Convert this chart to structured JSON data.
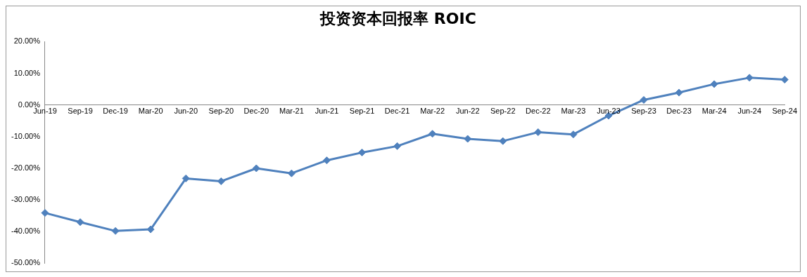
{
  "chart_data": {
    "type": "line",
    "title": "投资资本回报率 ROIC",
    "categories": [
      "Jun-19",
      "Sep-19",
      "Dec-19",
      "Mar-20",
      "Jun-20",
      "Sep-20",
      "Dec-20",
      "Mar-21",
      "Jun-21",
      "Sep-21",
      "Dec-21",
      "Mar-22",
      "Jun-22",
      "Sep-22",
      "Dec-22",
      "Mar-23",
      "Jun-23",
      "Sep-23",
      "Dec-23",
      "Mar-24",
      "Jun-24",
      "Sep-24"
    ],
    "series": [
      {
        "color": "#4f81bd",
        "values": [
          -34.1,
          -37.0,
          -39.8,
          -39.3,
          -23.2,
          -24.1,
          -20.0,
          -21.6,
          -17.5,
          -15.0,
          -13.0,
          -9.1,
          -10.7,
          -11.4,
          -8.6,
          -9.3,
          -3.4,
          1.6,
          3.9,
          6.6,
          8.6,
          8.0
        ]
      }
    ],
    "ylim": [
      -50,
      20
    ],
    "yticks": [
      {
        "value": -50,
        "label": "-50.00%"
      },
      {
        "value": -40,
        "label": "-40.00%"
      },
      {
        "value": -30,
        "label": "-30.00%"
      },
      {
        "value": -20,
        "label": "-20.00%"
      },
      {
        "value": -10,
        "label": "-10.00%"
      },
      {
        "value": 0,
        "label": "0.00%"
      },
      {
        "value": 10,
        "label": "10.00%"
      },
      {
        "value": 20,
        "label": "20.00%"
      }
    ],
    "grid": false,
    "legend": false,
    "marker": "diamond",
    "line_style": "solid"
  }
}
